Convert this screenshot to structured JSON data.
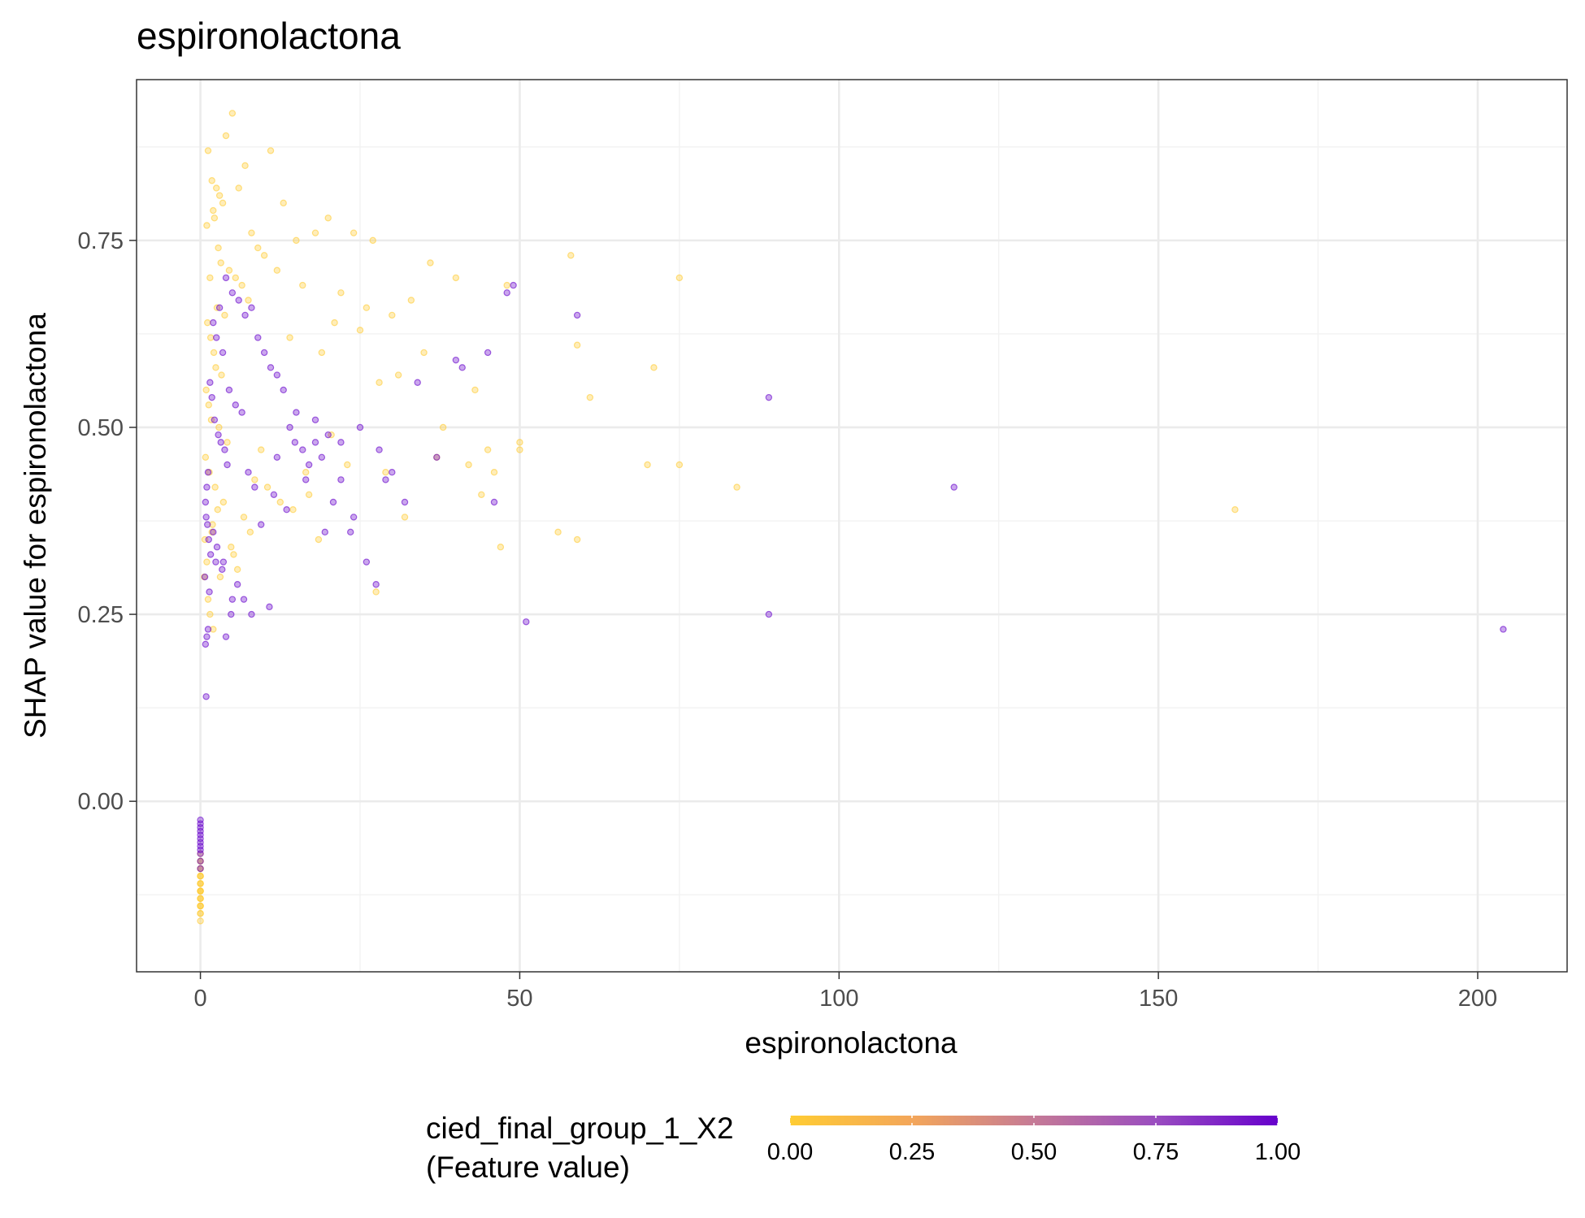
{
  "chart_data": {
    "type": "scatter",
    "title": "espironolactona",
    "xlabel": "espironolactona",
    "ylabel": "SHAP value for espironolactona",
    "xlim": [
      -10,
      214
    ],
    "ylim": [
      -0.228,
      0.965
    ],
    "x_ticks": [
      0,
      50,
      100,
      150,
      200
    ],
    "x_tick_labels": [
      "0",
      "50",
      "100",
      "150",
      "200"
    ],
    "y_ticks": [
      0.0,
      0.25,
      0.5,
      0.75
    ],
    "y_tick_labels": [
      "0.00",
      "0.25",
      "0.50",
      "0.75"
    ],
    "grid": true,
    "legend": {
      "title_line1": "cied_final_group_1_X2",
      "title_line2": "(Feature value)",
      "placement": "bottom",
      "ticks": [
        0,
        0.25,
        0.5,
        0.75,
        1.0
      ],
      "tick_labels": [
        "0.00",
        "0.25",
        "0.50",
        "0.75",
        "1.00"
      ],
      "color_low": "#FFCC33",
      "color_high": "#6600CC"
    },
    "point_opacity": 0.35,
    "series": [
      {
        "x": [
          1.2,
          1.8,
          2.5,
          3.0,
          2.0,
          4.0,
          5.0,
          7.0,
          3.5,
          6.0,
          1.0,
          2.2,
          8.0,
          11.0,
          13.0,
          9.0,
          10.0,
          15.0,
          18.0,
          20.0,
          24.0,
          27.0,
          36.0,
          40.0,
          58.0,
          75.0,
          71.0,
          59.0,
          61.0,
          48.0,
          50.0,
          45.0,
          43.0,
          38.0,
          30.0,
          33.0,
          26.0,
          22.0,
          16.0,
          12.0,
          14.0,
          19.0,
          21.0,
          25.0,
          28.0,
          31.0,
          35.0,
          42.0,
          46.0,
          50.0,
          47.0,
          56.0,
          59.0,
          70.0,
          75.0,
          84.0,
          162.0,
          2.8,
          3.2,
          4.5,
          5.5,
          6.5,
          7.5,
          1.5,
          2.6,
          3.8,
          1.1,
          1.6,
          2.1,
          2.4,
          3.3,
          0.9,
          1.3,
          1.7,
          2.9,
          4.2,
          0.8,
          1.4,
          2.3,
          3.6,
          6.8,
          8.5,
          9.5,
          17.0,
          23.0,
          29.0,
          32.0,
          37.0,
          44.0,
          0.7,
          1.9,
          2.7,
          5.2,
          10.5,
          12.5,
          14.5,
          16.5,
          18.5,
          20.5,
          27.5,
          0.6,
          1.0,
          1.2,
          1.5,
          2.0,
          1.8,
          3.1,
          4.8,
          5.8,
          7.8
        ],
        "y": [
          0.87,
          0.83,
          0.82,
          0.81,
          0.79,
          0.89,
          0.92,
          0.85,
          0.8,
          0.82,
          0.77,
          0.78,
          0.76,
          0.87,
          0.8,
          0.74,
          0.73,
          0.75,
          0.76,
          0.78,
          0.76,
          0.75,
          0.72,
          0.7,
          0.73,
          0.7,
          0.58,
          0.61,
          0.54,
          0.69,
          0.48,
          0.47,
          0.55,
          0.5,
          0.65,
          0.67,
          0.66,
          0.68,
          0.69,
          0.71,
          0.62,
          0.6,
          0.64,
          0.63,
          0.56,
          0.57,
          0.6,
          0.45,
          0.44,
          0.47,
          0.34,
          0.36,
          0.35,
          0.45,
          0.45,
          0.42,
          0.39,
          0.74,
          0.72,
          0.71,
          0.7,
          0.69,
          0.67,
          0.7,
          0.66,
          0.65,
          0.64,
          0.62,
          0.6,
          0.58,
          0.57,
          0.55,
          0.53,
          0.51,
          0.5,
          0.48,
          0.46,
          0.44,
          0.42,
          0.4,
          0.38,
          0.43,
          0.47,
          0.41,
          0.45,
          0.44,
          0.38,
          0.46,
          0.41,
          0.35,
          0.37,
          0.39,
          0.33,
          0.42,
          0.4,
          0.39,
          0.44,
          0.35,
          0.49,
          0.28,
          0.3,
          0.32,
          0.27,
          0.25,
          0.23,
          0.36,
          0.3,
          0.34,
          0.31,
          0.36
        ],
        "color_value": 0.0
      },
      {
        "x": [
          2.0,
          3.0,
          4.0,
          5.0,
          6.0,
          7.0,
          8.0,
          9.0,
          10.0,
          11.0,
          12.0,
          13.0,
          14.0,
          15.0,
          16.0,
          17.0,
          18.0,
          19.0,
          20.0,
          22.0,
          24.0,
          25.0,
          26.0,
          28.0,
          30.0,
          32.0,
          34.0,
          37.0,
          40.0,
          41.0,
          45.0,
          46.0,
          48.0,
          49.0,
          59.0,
          89.0,
          118.0,
          89.0,
          51.0,
          204.0,
          2.5,
          3.5,
          4.5,
          5.5,
          6.5,
          1.5,
          1.8,
          2.2,
          2.8,
          3.2,
          3.8,
          4.2,
          1.2,
          1.0,
          0.8,
          0.9,
          1.1,
          1.3,
          1.6,
          2.6,
          3.6,
          7.5,
          8.5,
          9.5,
          11.5,
          13.5,
          16.5,
          19.5,
          23.5,
          27.5,
          0.7,
          1.4,
          2.4,
          3.4,
          4.8,
          5.8,
          6.8,
          10.8,
          14.8,
          20.8,
          29.0,
          22.0,
          18.0,
          12.0,
          1.0,
          0.8,
          1.2,
          0.9,
          4.0,
          5.0,
          8.0,
          2.0
        ],
        "y": [
          0.64,
          0.66,
          0.7,
          0.68,
          0.67,
          0.65,
          0.66,
          0.62,
          0.6,
          0.58,
          0.57,
          0.55,
          0.5,
          0.52,
          0.47,
          0.45,
          0.48,
          0.46,
          0.49,
          0.43,
          0.38,
          0.5,
          0.32,
          0.47,
          0.44,
          0.4,
          0.56,
          0.46,
          0.59,
          0.58,
          0.6,
          0.4,
          0.68,
          0.69,
          0.65,
          0.54,
          0.42,
          0.25,
          0.24,
          0.23,
          0.62,
          0.6,
          0.55,
          0.53,
          0.52,
          0.56,
          0.54,
          0.51,
          0.49,
          0.48,
          0.47,
          0.45,
          0.44,
          0.42,
          0.4,
          0.38,
          0.37,
          0.35,
          0.33,
          0.34,
          0.32,
          0.44,
          0.42,
          0.37,
          0.41,
          0.39,
          0.43,
          0.36,
          0.36,
          0.29,
          0.3,
          0.28,
          0.32,
          0.31,
          0.25,
          0.29,
          0.27,
          0.26,
          0.48,
          0.4,
          0.43,
          0.48,
          0.51,
          0.46,
          0.22,
          0.21,
          0.23,
          0.14,
          0.22,
          0.27,
          0.25,
          0.36
        ],
        "color_value": 1.0
      },
      {
        "x": [
          0,
          0,
          0,
          0,
          0,
          0,
          0,
          0,
          0,
          0,
          0,
          0,
          0,
          0,
          0,
          0,
          0,
          0,
          0,
          0,
          0,
          0,
          0,
          0
        ],
        "y": [
          -0.14,
          -0.13,
          -0.12,
          -0.11,
          -0.1,
          -0.09,
          -0.08,
          -0.07,
          -0.15,
          -0.16,
          -0.13,
          -0.12,
          -0.11,
          -0.1,
          -0.09,
          -0.14,
          -0.12,
          -0.15,
          -0.11,
          -0.08,
          -0.13,
          -0.1,
          -0.14,
          -0.12
        ],
        "color_value": 0.0
      },
      {
        "x": [
          0,
          0,
          0,
          0,
          0,
          0,
          0,
          0,
          0,
          0,
          0,
          0
        ],
        "y": [
          -0.025,
          -0.03,
          -0.035,
          -0.04,
          -0.045,
          -0.05,
          -0.055,
          -0.06,
          -0.065,
          -0.07,
          -0.08,
          -0.09
        ],
        "color_value": 1.0
      }
    ]
  }
}
